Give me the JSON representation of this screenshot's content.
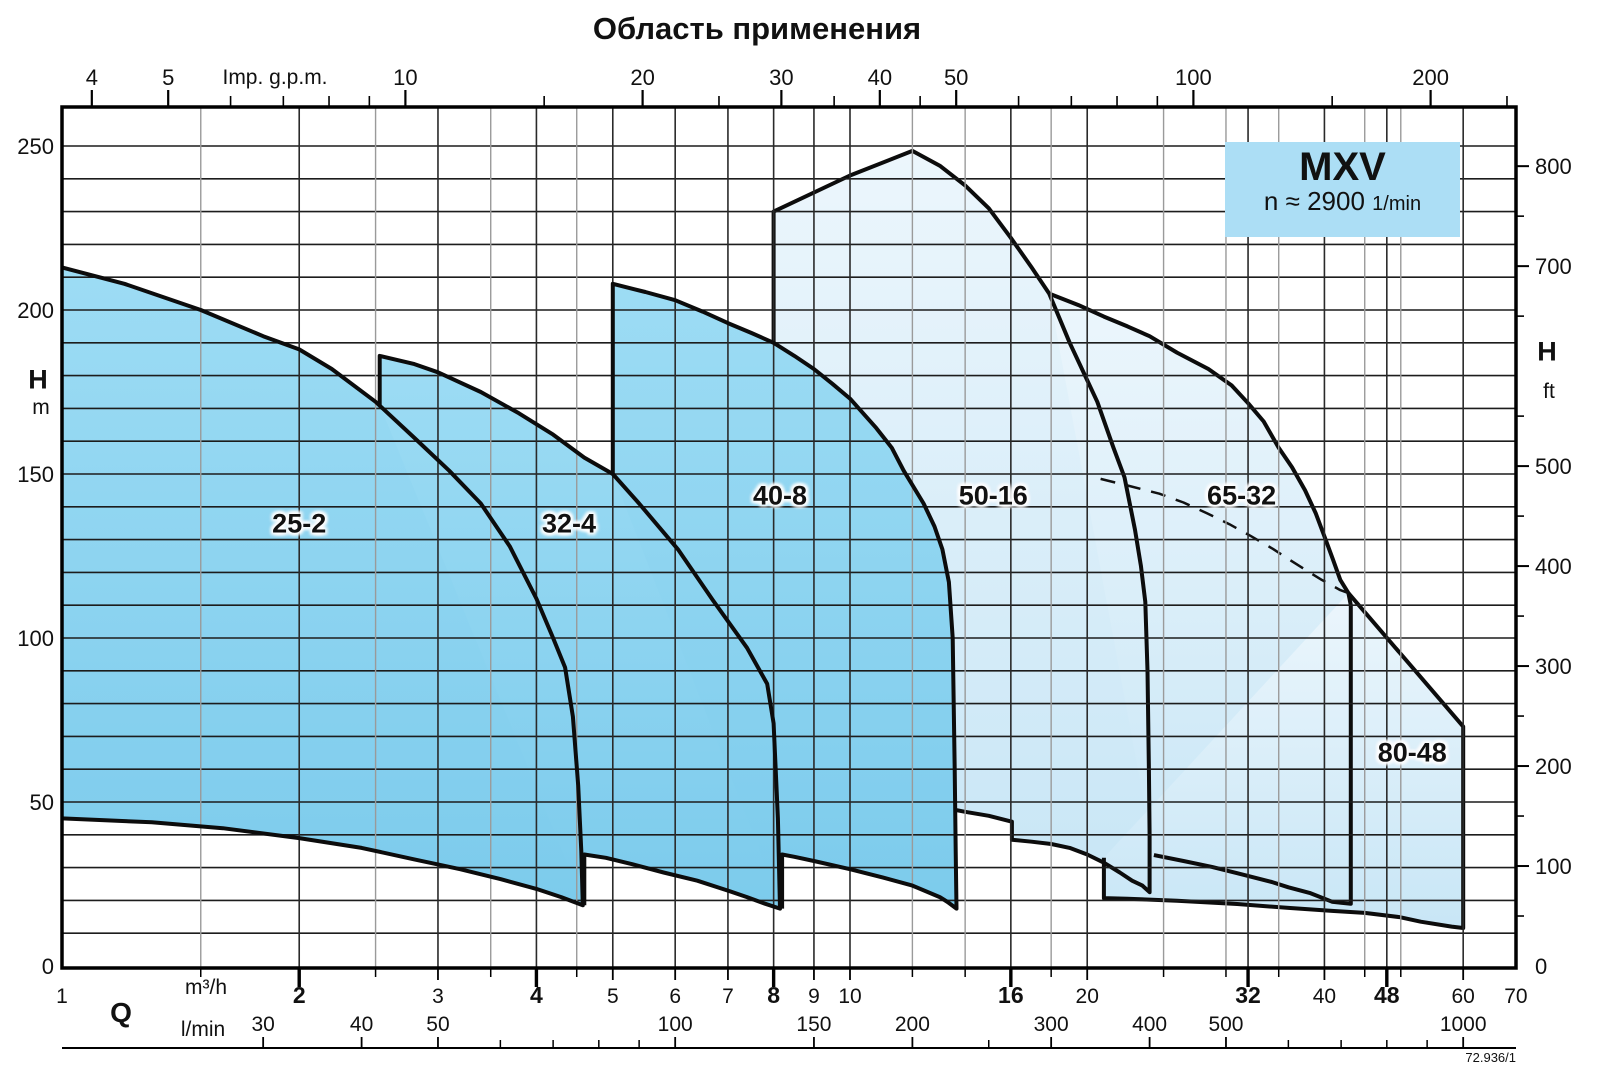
{
  "title": "Область применения",
  "legend": {
    "model": "MXV",
    "speed_prefix": "n ≈ 2900",
    "speed_unit": "1/min"
  },
  "drawing_code": "72.936/1",
  "axes_titles": {
    "top_unit": "Imp. g.p.m.",
    "left_letter": "H",
    "left_unit": "m",
    "right_letter": "H",
    "right_unit": "ft",
    "bottom_letter": "Q",
    "bottom_unit_1": "m³/h",
    "bottom_unit_2": "l/min"
  },
  "chart_data": {
    "type": "area",
    "title": "Область применения",
    "xlabel": "Q (m³/h, l/min, Imp. g.p.m.) — log scale",
    "ylabel": "H (m left, ft right)",
    "xlim_m3h": [
      1,
      70
    ],
    "ylim_m": [
      0,
      262
    ],
    "grid": "on",
    "x_axis": {
      "m3h_labeled": [
        1,
        2,
        3,
        4,
        5,
        6,
        7,
        8,
        9,
        10,
        16,
        20,
        32,
        40,
        48,
        60,
        70
      ],
      "m3h_bold": [
        2,
        4,
        8,
        16,
        32,
        48
      ],
      "m3h_minor": [
        1.5,
        2.5,
        3.5,
        4.5,
        12,
        14,
        18,
        25,
        30,
        35,
        45,
        50
      ],
      "grid_dark": [
        2,
        3,
        4,
        5,
        6,
        7,
        8,
        9,
        10,
        16,
        20,
        32,
        40,
        48,
        60
      ],
      "grid_gray": [
        1.5,
        2.5,
        3.5,
        4.5,
        12,
        14,
        18,
        25,
        30,
        35,
        45,
        50
      ],
      "lmin_labeled": [
        30,
        40,
        50,
        100,
        150,
        200,
        300,
        400,
        500,
        1000
      ],
      "lmin_minor": [
        60,
        70,
        80,
        90,
        250,
        600,
        700,
        800,
        900
      ],
      "gpm_labeled": [
        4,
        5,
        10,
        20,
        30,
        40,
        50,
        100,
        200
      ],
      "gpm_minor": [
        6,
        7,
        8,
        9,
        15,
        25,
        35,
        45,
        60,
        70,
        80,
        90,
        150,
        250
      ]
    },
    "y_axis": {
      "left_m_labeled": [
        0,
        50,
        100,
        150,
        200,
        250
      ],
      "grid_m_step": 10,
      "grid_m_max": 250,
      "right_ft_labeled": [
        0,
        100,
        200,
        300,
        400,
        500,
        700,
        800
      ],
      "right_ft_minor": [
        50,
        150,
        250,
        350,
        450,
        550,
        650,
        750
      ]
    },
    "colors": {
      "medium_top": "#9ddcf4",
      "medium_bottom": "#7ccbec",
      "pale_top": "#ecf6fc",
      "pale_bottom": "#c8e6f6",
      "outline": "#0c0c0c",
      "grid_h": "#1c1c1c",
      "grid_v_dark": "#2a2a2a",
      "grid_v_gray": "#9a9a9a",
      "legend_bg": "#acdef5"
    },
    "regions": [
      {
        "name": "50-16",
        "shade": "pale",
        "label": "50-16",
        "label_q": 15.2,
        "label_h": 143.3,
        "pts": [
          [
            8,
            54
          ],
          [
            8,
            230
          ],
          [
            10,
            241
          ],
          [
            12,
            248.5
          ],
          [
            13,
            244
          ],
          [
            14,
            238
          ],
          [
            15,
            231
          ],
          [
            16,
            222
          ],
          [
            17,
            213
          ],
          [
            17.9,
            205
          ],
          [
            19,
            190
          ],
          [
            20.6,
            172
          ],
          [
            21.6,
            158
          ],
          [
            22.3,
            149
          ],
          [
            23,
            133
          ],
          [
            23.4,
            122
          ],
          [
            23.7,
            111
          ],
          [
            23.85,
            90
          ],
          [
            23.95,
            60
          ],
          [
            24,
            40
          ],
          [
            24,
            22.5
          ],
          [
            23.5,
            24.5
          ],
          [
            22.8,
            26
          ],
          [
            22,
            28.5
          ],
          [
            21,
            31.5
          ],
          [
            20,
            34
          ],
          [
            19,
            36
          ],
          [
            18,
            37.2
          ],
          [
            17,
            37.9
          ],
          [
            16.05,
            38.5
          ],
          [
            16.05,
            44
          ],
          [
            15,
            45.8
          ],
          [
            14,
            47
          ],
          [
            13,
            48.5
          ],
          [
            12,
            50
          ],
          [
            10,
            52
          ],
          [
            9,
            53
          ],
          [
            8,
            54
          ]
        ]
      },
      {
        "name": "65-32",
        "shade": "pale",
        "label": "65-32",
        "label_q": 31.4,
        "label_h": 143.3,
        "pts": [
          [
            17.9,
            205
          ],
          [
            19.5,
            201.5
          ],
          [
            21,
            198
          ],
          [
            22.5,
            195
          ],
          [
            24,
            192
          ],
          [
            26,
            187
          ],
          [
            28.5,
            182
          ],
          [
            30.5,
            177
          ],
          [
            32,
            171.6
          ],
          [
            33.5,
            166
          ],
          [
            35,
            158
          ],
          [
            36.4,
            152
          ],
          [
            37.8,
            145
          ],
          [
            39,
            138
          ],
          [
            40,
            131
          ],
          [
            41,
            124
          ],
          [
            41.9,
            117.7
          ],
          [
            42.9,
            113.7
          ],
          [
            43.2,
            110
          ],
          [
            43.2,
            60
          ],
          [
            43.2,
            19
          ],
          [
            42,
            19.3
          ],
          [
            40.9,
            19.6
          ],
          [
            38.3,
            22.3
          ],
          [
            36,
            24
          ],
          [
            34.3,
            25.6
          ],
          [
            31,
            28.3
          ],
          [
            28.8,
            30.2
          ],
          [
            26.5,
            32
          ],
          [
            24.3,
            33.8
          ]
        ]
      },
      {
        "name": "80-48",
        "shade": "pale",
        "label": "80-48",
        "label_q": 51.7,
        "label_h": 64.9,
        "pts": [
          [
            42.9,
            113.7
          ],
          [
            60,
            73
          ],
          [
            60,
            40
          ],
          [
            60,
            11.6
          ],
          [
            58,
            12
          ],
          [
            53,
            13.5
          ],
          [
            49.8,
            14.9
          ],
          [
            45,
            16.2
          ],
          [
            40.9,
            16.8
          ],
          [
            36,
            17.7
          ],
          [
            31,
            18.9
          ],
          [
            26,
            19.9
          ],
          [
            22.5,
            20.5
          ],
          [
            21,
            20.7
          ],
          [
            21,
            33
          ]
        ]
      },
      {
        "name": "25-2",
        "shade": "medium",
        "label": "25-2",
        "label_q": 2.0,
        "label_h": 134.8,
        "pts": [
          [
            1,
            213
          ],
          [
            1.2,
            208
          ],
          [
            1.5,
            200
          ],
          [
            1.8,
            192
          ],
          [
            2,
            188
          ],
          [
            2.2,
            182
          ],
          [
            2.5,
            172
          ],
          [
            2.8,
            161
          ],
          [
            3.1,
            151
          ],
          [
            3.4,
            141
          ],
          [
            3.7,
            128
          ],
          [
            4,
            112
          ],
          [
            4.2,
            100
          ],
          [
            4.35,
            91
          ],
          [
            4.45,
            76
          ],
          [
            4.52,
            55
          ],
          [
            4.56,
            35
          ],
          [
            4.58,
            18.5
          ],
          [
            4.3,
            21
          ],
          [
            4,
            23.5
          ],
          [
            3.6,
            26.5
          ],
          [
            3.2,
            29.5
          ],
          [
            2.8,
            32.5
          ],
          [
            2.4,
            36
          ],
          [
            2,
            39
          ],
          [
            1.6,
            42
          ],
          [
            1.3,
            43.8
          ],
          [
            1,
            45
          ]
        ]
      },
      {
        "name": "32-4",
        "shade": "medium",
        "label": "32-4",
        "label_q": 4.4,
        "label_h": 134.8,
        "pts": [
          [
            2.53,
            171
          ],
          [
            2.53,
            186
          ],
          [
            2.8,
            183.5
          ],
          [
            3,
            181
          ],
          [
            3.4,
            175
          ],
          [
            3.8,
            168.5
          ],
          [
            4.2,
            162
          ],
          [
            4.6,
            155
          ],
          [
            5,
            150
          ],
          [
            5.4,
            141
          ],
          [
            6.05,
            127
          ],
          [
            6.7,
            111.5
          ],
          [
            7.4,
            97
          ],
          [
            7.85,
            86
          ],
          [
            8,
            74
          ],
          [
            8.1,
            45
          ],
          [
            8.15,
            17.5
          ],
          [
            7.8,
            19
          ],
          [
            7.4,
            21
          ],
          [
            7,
            23
          ],
          [
            6.4,
            26
          ],
          [
            5.8,
            28.5
          ],
          [
            5.3,
            31
          ],
          [
            4.9,
            33
          ],
          [
            4.6,
            34
          ],
          [
            4.6,
            18.5
          ]
        ]
      },
      {
        "name": "40-8",
        "shade": "medium",
        "label": "40-8",
        "label_q": 8.15,
        "label_h": 143.3,
        "pts": [
          [
            5,
            150
          ],
          [
            5,
            208
          ],
          [
            5.5,
            205.5
          ],
          [
            6,
            203
          ],
          [
            6.5,
            199.5
          ],
          [
            7,
            196
          ],
          [
            7.5,
            193
          ],
          [
            8,
            190
          ],
          [
            8.5,
            186
          ],
          [
            9,
            182
          ],
          [
            9.5,
            177.5
          ],
          [
            10,
            173
          ],
          [
            10.8,
            164
          ],
          [
            11.3,
            158
          ],
          [
            11.7,
            151
          ],
          [
            12.4,
            141
          ],
          [
            12.8,
            134
          ],
          [
            13.1,
            127
          ],
          [
            13.35,
            117
          ],
          [
            13.5,
            100
          ],
          [
            13.58,
            60
          ],
          [
            13.62,
            35
          ],
          [
            13.65,
            17.5
          ],
          [
            13.3,
            19.5
          ],
          [
            13,
            21
          ],
          [
            12,
            24.5
          ],
          [
            11,
            27
          ],
          [
            10,
            29.5
          ],
          [
            9,
            32
          ],
          [
            8.5,
            33.3
          ],
          [
            8.2,
            34
          ],
          [
            8.2,
            17.5
          ]
        ]
      }
    ],
    "dashed_boundary": [
      [
        20.8,
        148.5
      ],
      [
        22.5,
        146.5
      ],
      [
        24.7,
        144
      ],
      [
        26.5,
        141.3
      ],
      [
        28.4,
        138
      ],
      [
        30.3,
        134.7
      ],
      [
        32.3,
        131
      ],
      [
        34.4,
        127.2
      ],
      [
        36.6,
        123
      ],
      [
        38.3,
        120
      ],
      [
        39.7,
        117.7
      ],
      [
        41.9,
        114.6
      ],
      [
        42.9,
        113.7
      ]
    ]
  }
}
